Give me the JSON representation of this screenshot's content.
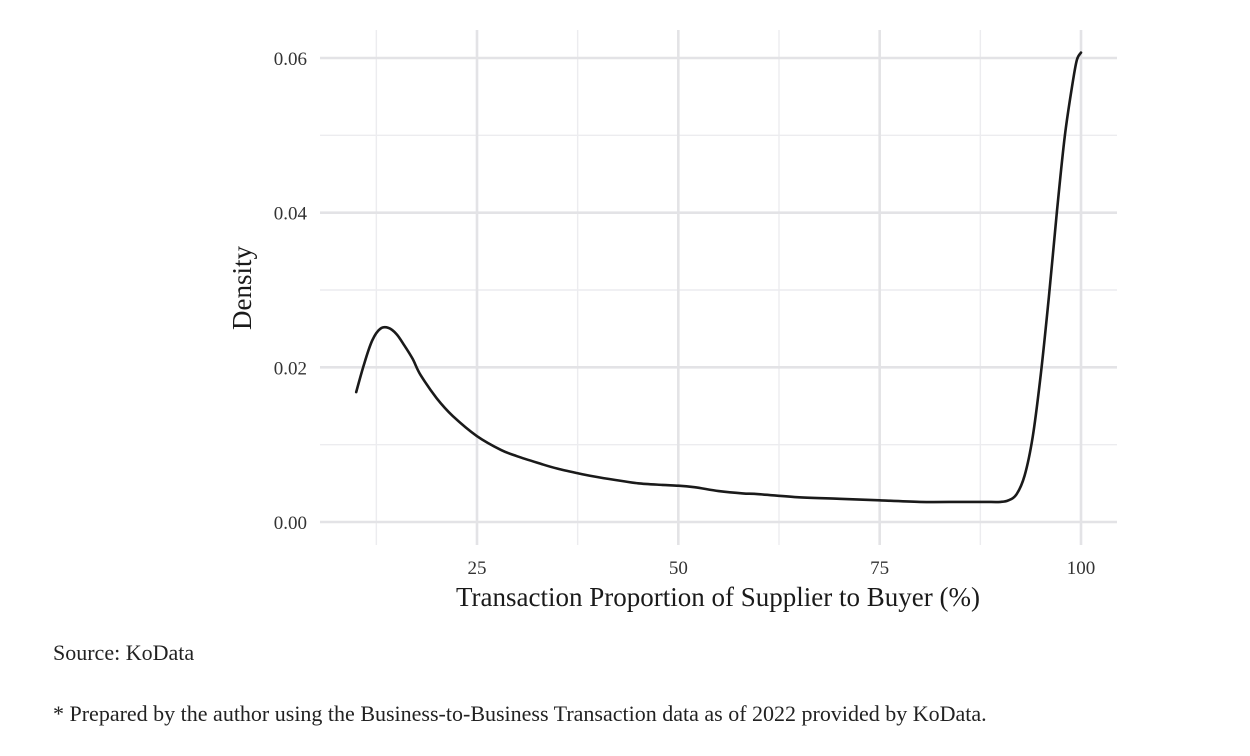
{
  "chart_data": {
    "type": "line",
    "subtype": "density",
    "title": "",
    "xlabel": "Transaction Proportion of Supplier to Buyer (%)",
    "ylabel": "Density",
    "xlim": [
      5,
      105
    ],
    "ylim": [
      -0.003,
      0.0638
    ],
    "x_ticks": [
      25,
      50,
      75,
      100
    ],
    "x_tick_labels": [
      "25",
      "50",
      "75",
      "100"
    ],
    "y_ticks": [
      0.0,
      0.02,
      0.04,
      0.06
    ],
    "y_tick_labels": [
      "0.00",
      "0.02",
      "0.04",
      "0.06"
    ],
    "x_minor_ticks": [
      12.5,
      37.5,
      62.5,
      87.5
    ],
    "y_minor_ticks": [
      0.01,
      0.03,
      0.05
    ],
    "grid": true,
    "legend": null,
    "series": [
      {
        "name": "density",
        "color": "#1a1a1a",
        "x": [
          10,
          11,
          12,
          13,
          14,
          15,
          16,
          17,
          18,
          20,
          22,
          25,
          28,
          30,
          33,
          35,
          38,
          40,
          43,
          45,
          48,
          50,
          52,
          55,
          58,
          60,
          65,
          70,
          75,
          80,
          85,
          88,
          90,
          91,
          92,
          93,
          94,
          95,
          96,
          97,
          98,
          99,
          99.5,
          100
        ],
        "y": [
          0.0168,
          0.0205,
          0.0235,
          0.025,
          0.0251,
          0.0243,
          0.0228,
          0.0211,
          0.019,
          0.016,
          0.0137,
          0.0111,
          0.0093,
          0.0085,
          0.0075,
          0.0069,
          0.0062,
          0.0058,
          0.0053,
          0.005,
          0.0048,
          0.0047,
          0.0045,
          0.004,
          0.0037,
          0.0036,
          0.0032,
          0.003,
          0.0028,
          0.0026,
          0.0026,
          0.0026,
          0.0026,
          0.0028,
          0.0036,
          0.006,
          0.011,
          0.019,
          0.029,
          0.04,
          0.05,
          0.057,
          0.0598,
          0.0607
        ]
      }
    ]
  },
  "captions": {
    "source": "Source: KoData",
    "note": "* Prepared by the author using the Business-to-Business Transaction data as of 2022 provided by KoData."
  },
  "colors": {
    "line": "#1a1a1a",
    "grid_major": "#e3e3e6",
    "grid_minor": "#ececef",
    "background": "#ffffff"
  }
}
